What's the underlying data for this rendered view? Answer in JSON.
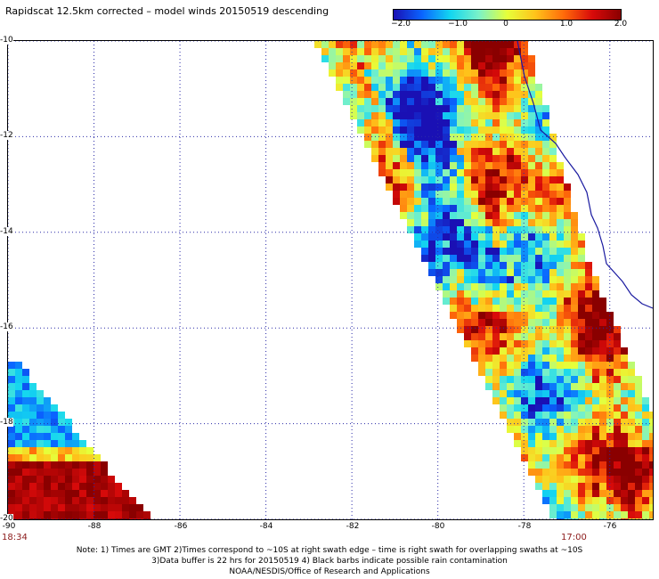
{
  "title": "Rapidscat 12.5km corrected – model winds 20150519 descending",
  "colorbar": {
    "labels": [
      "−2.0",
      "−1.0",
      "0",
      "1.0",
      "2.0"
    ],
    "colors": [
      "#1a10b4",
      "#0a64ff",
      "#13d6f0",
      "#7af2c8",
      "#e6ff3a",
      "#ffc21a",
      "#ff6a0a",
      "#d80a0a",
      "#8a0000"
    ]
  },
  "map": {
    "lon_labels": [
      "-90",
      "-88",
      "-86",
      "-84",
      "-82",
      "-80",
      "-78",
      "-76"
    ],
    "lat_labels": [
      "-10",
      "-12",
      "-14",
      "-16",
      "-18",
      "-20"
    ],
    "lon_range": [
      -90,
      -75
    ],
    "lat_range": [
      -10,
      -20
    ],
    "time_left": "18:34",
    "time_right": "17:00"
  },
  "notes": {
    "line1": "Note: 1) Times are GMT 2)Times correspond to ~10S at right swath edge – time is right swath for overlapping swaths at ~10S",
    "line2": "3)Data buffer is 22 hrs for 20150519 4) Black barbs indicate possible rain contamination",
    "line3": "NOAA/NESDIS/Office of Research and Applications"
  }
}
